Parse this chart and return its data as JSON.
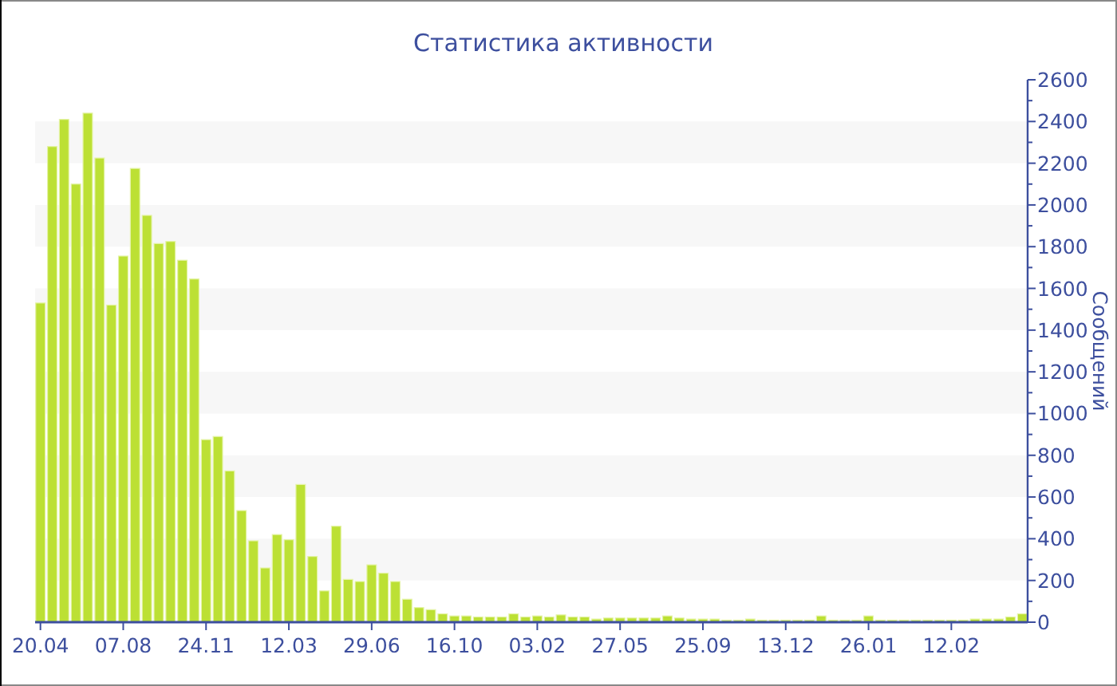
{
  "chart_data": {
    "type": "bar",
    "title": "Статистика активности",
    "ylabel": "Сообщений",
    "categories": [
      "20.04",
      null,
      null,
      null,
      null,
      null,
      null,
      "07.08",
      null,
      null,
      null,
      null,
      null,
      null,
      "24.11",
      null,
      null,
      null,
      null,
      null,
      null,
      "12.03",
      null,
      null,
      null,
      null,
      null,
      null,
      "29.06",
      null,
      null,
      null,
      null,
      null,
      null,
      "16.10",
      null,
      null,
      null,
      null,
      null,
      null,
      "03.02",
      null,
      null,
      null,
      null,
      null,
      null,
      "27.05",
      null,
      null,
      null,
      null,
      null,
      null,
      "25.09",
      null,
      null,
      null,
      null,
      null,
      null,
      "13.12",
      null,
      null,
      null,
      null,
      null,
      null,
      "26.01",
      null,
      null,
      null,
      null,
      null,
      null,
      "12.02",
      null,
      null,
      null,
      null,
      null,
      null
    ],
    "values": [
      1530,
      2280,
      2410,
      2100,
      2440,
      2225,
      1520,
      1755,
      2175,
      1950,
      1815,
      1825,
      1735,
      1645,
      875,
      890,
      725,
      535,
      390,
      260,
      420,
      395,
      660,
      315,
      150,
      460,
      205,
      195,
      275,
      235,
      195,
      110,
      70,
      60,
      40,
      30,
      30,
      25,
      25,
      25,
      40,
      25,
      30,
      25,
      35,
      25,
      25,
      15,
      20,
      20,
      20,
      20,
      20,
      30,
      20,
      15,
      15,
      15,
      10,
      10,
      15,
      10,
      10,
      10,
      10,
      10,
      30,
      10,
      10,
      10,
      30,
      10,
      10,
      10,
      10,
      10,
      10,
      10,
      10,
      15,
      15,
      15,
      25,
      40
    ],
    "color": "#bce034",
    "ylim": [
      0,
      2600
    ],
    "yticks": [
      0,
      {
        "value": 100,
        "label": null
      },
      200,
      {
        "value": 300,
        "label": null
      },
      400,
      {
        "value": 500,
        "label": null
      },
      600,
      {
        "value": 700,
        "label": null
      },
      800,
      {
        "value": 900,
        "label": null
      },
      1000,
      {
        "value": 1100,
        "label": null
      },
      1200,
      {
        "value": 1300,
        "label": null
      },
      1400,
      {
        "value": 1500,
        "label": null
      },
      1600,
      {
        "value": 1700,
        "label": null
      },
      1800,
      {
        "value": 1900,
        "label": null
      },
      2000,
      {
        "value": 2100,
        "label": null
      },
      2200,
      {
        "value": 2300,
        "label": null
      },
      2400,
      {
        "value": 2500,
        "label": null
      },
      2600
    ],
    "grid": false
  }
}
